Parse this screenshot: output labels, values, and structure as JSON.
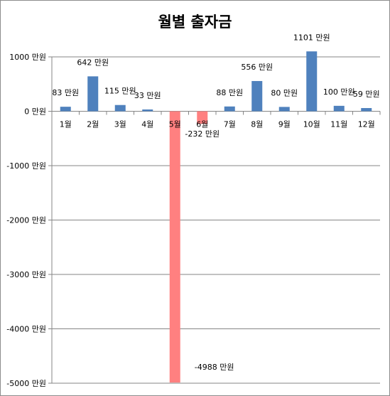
{
  "chart_data": {
    "type": "bar",
    "title": "월별 출자금",
    "categories": [
      "1월",
      "2월",
      "3월",
      "4월",
      "5월",
      "6월",
      "7월",
      "8월",
      "9월",
      "10월",
      "11월",
      "12월"
    ],
    "values": [
      83,
      642,
      115,
      33,
      -4988,
      -232,
      88,
      556,
      80,
      1101,
      100,
      59
    ],
    "data_labels": [
      "83 만원",
      "642 만원",
      "115 만원",
      "33 만원",
      "-4988 만원",
      "-232 만원",
      "88 만원",
      "556 만원",
      "80 만원",
      "1101 만원",
      "100 만원",
      "59 만원"
    ],
    "ylim": [
      -5000,
      1000
    ],
    "yticks": [
      1000,
      0,
      -1000,
      -2000,
      -3000,
      -4000,
      -5000
    ],
    "ytick_labels": [
      "1000 만원",
      "0 만원",
      "-1000 만원",
      "-2000 만원",
      "-3000 만원",
      "-4000 만원",
      "-5000 만원"
    ],
    "grid": true,
    "legend": false,
    "colors": {
      "positive": "#4f81bd",
      "negative": "#ff8080",
      "grid": "#868686",
      "axis": "#868686"
    }
  }
}
